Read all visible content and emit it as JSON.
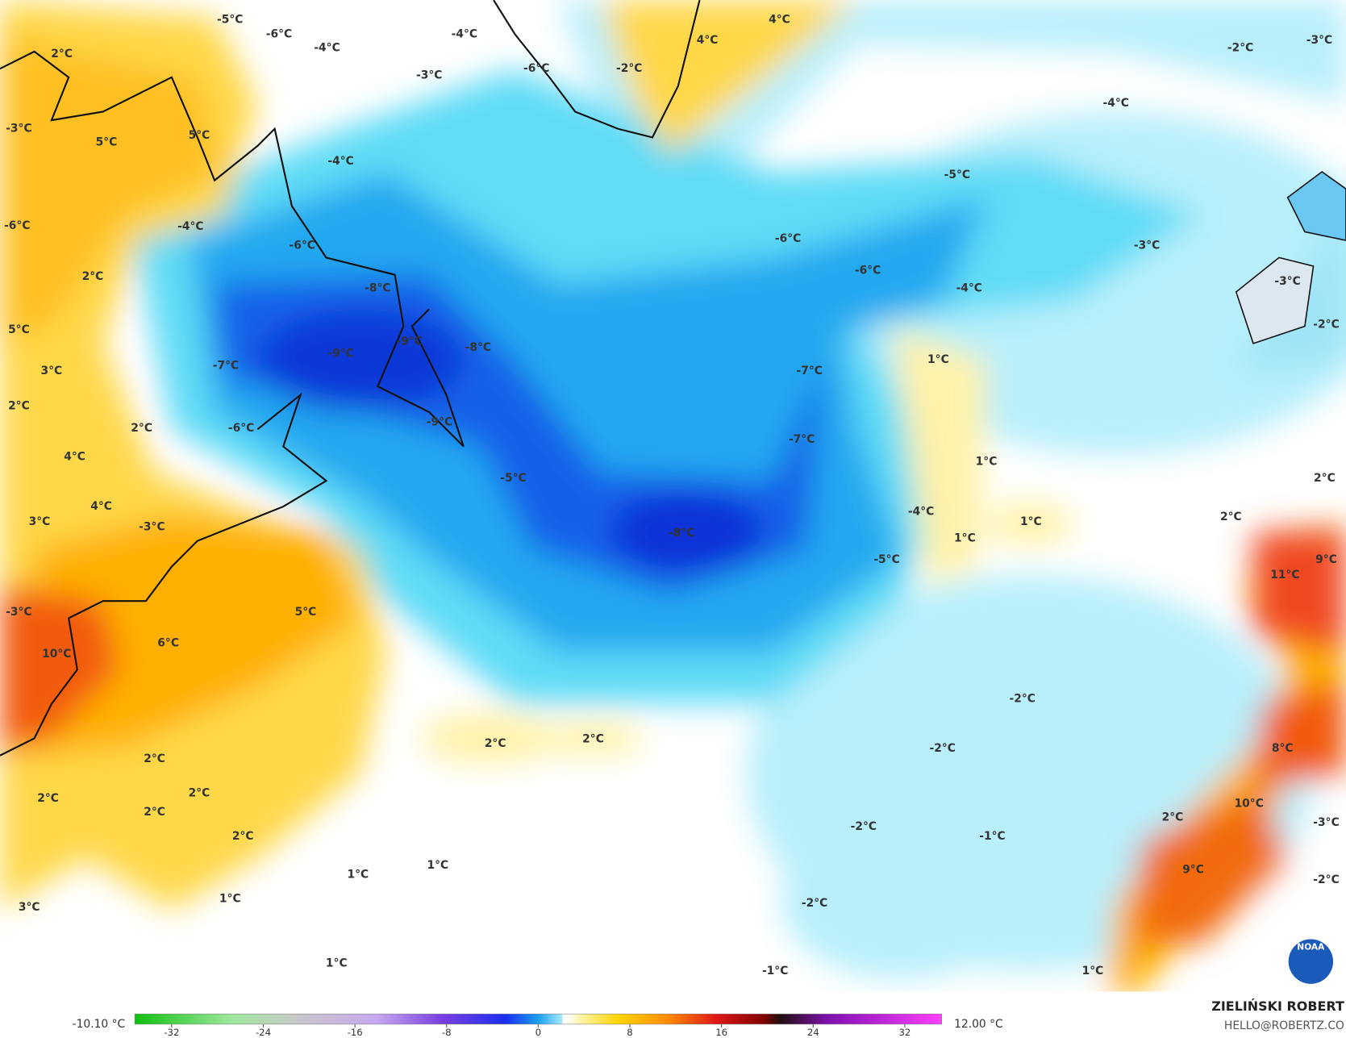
{
  "map": {
    "labels": [
      "-5°C",
      "-6°C",
      "-4°C",
      "-4°C",
      "2°C",
      "-3°C",
      "-6°C",
      "-2°C",
      "4°C",
      "4°C",
      "-2°C",
      "-3°C",
      "-4°C",
      "-3°C",
      "5°C",
      "5°C",
      "-4°C",
      "-5°C",
      "-6°C",
      "-4°C",
      "-6°C",
      "-6°C",
      "-3°C",
      "2°C",
      "-6°C",
      "-8°C",
      "-4°C",
      "-3°C",
      "5°C",
      "-9°C",
      "-9°C",
      "-8°C",
      "-7°C",
      "1°C",
      "-7°C",
      "3°C",
      "-2°C",
      "2°C",
      "2°C",
      "-9°C",
      "-6°C",
      "-7°C",
      "4°C",
      "1°C",
      "-5°C",
      "2°C",
      "4°C",
      "-4°C",
      "3°C",
      "-3°C",
      "1°C",
      "2°C",
      "-8°C",
      "1°C",
      "-5°C",
      "11°C",
      "9°C",
      "5°C",
      "-3°C",
      "6°C",
      "10°C",
      "-2°C",
      "2°C",
      "2°C",
      "-2°C",
      "8°C",
      "2°C",
      "2°C",
      "2°C",
      "10°C",
      "2°C",
      "2°C",
      "-3°C",
      "-2°C",
      "2°C",
      "-1°C",
      "1°C",
      "1°C",
      "9°C",
      "-2°C",
      "1°C",
      "-2°C",
      "3°C",
      "1°C",
      "-1°C",
      "1°C"
    ]
  },
  "colorbar": {
    "min_label": "-10.10 °C",
    "max_label": "12.00 °C",
    "ticks": [
      -32,
      -24,
      -16,
      -8,
      0,
      8,
      16,
      24,
      32
    ]
  },
  "credits": {
    "author": "ZIELIŃSKI ROBERT",
    "email": "HELLO@ROBERTZ.CO",
    "logo": "NOAA"
  }
}
